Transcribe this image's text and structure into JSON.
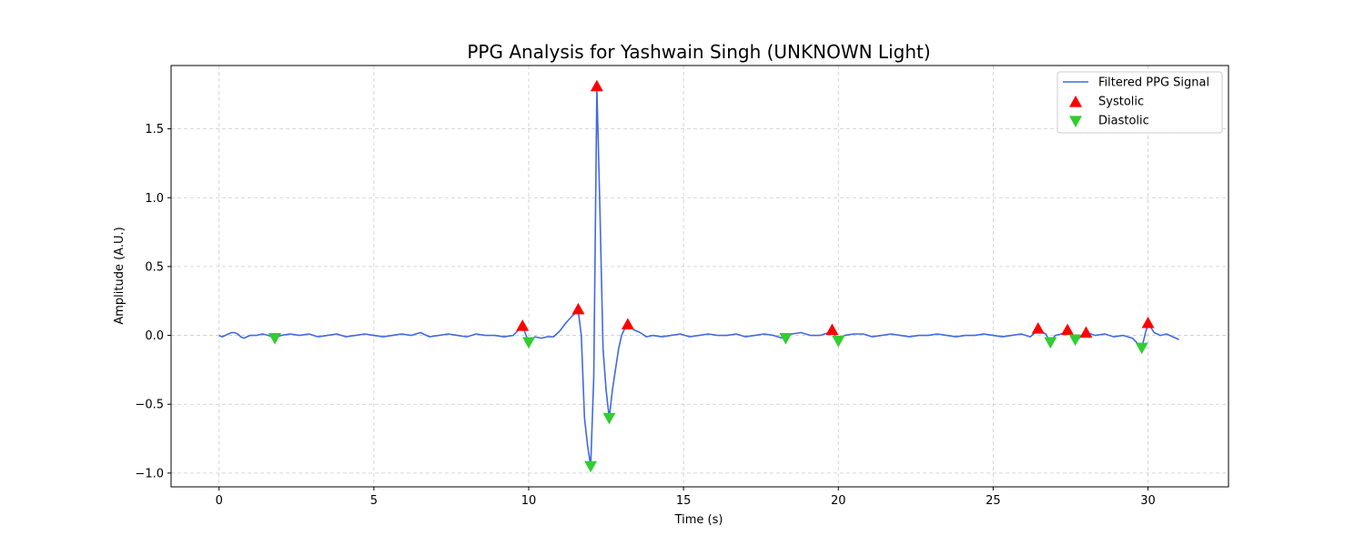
{
  "chart_data": {
    "type": "line",
    "title": "PPG Analysis for Yashwain Singh (UNKNOWN Light)",
    "xlabel": "Time (s)",
    "ylabel": "Amplitude (A.U.)",
    "xlim": [
      -1.55,
      32.6
    ],
    "ylim": [
      -1.1,
      1.96
    ],
    "xticks": [
      0,
      5,
      10,
      15,
      20,
      25,
      30
    ],
    "yticks": [
      -1.0,
      -0.5,
      0.0,
      0.5,
      1.0,
      1.5
    ],
    "xtick_labels": [
      "0",
      "5",
      "10",
      "15",
      "20",
      "25",
      "30"
    ],
    "ytick_labels": [
      "−1.0",
      "−0.5",
      "0.0",
      "0.5",
      "1.0",
      "1.5"
    ],
    "grid": true,
    "legend_position": "top-right",
    "series": [
      {
        "name": "Filtered PPG Signal",
        "kind": "line",
        "color": "#4169e1",
        "x": [
          0,
          0.1,
          0.2,
          0.3,
          0.4,
          0.5,
          0.6,
          0.7,
          0.8,
          0.9,
          1.0,
          1.2,
          1.4,
          1.6,
          1.8,
          2.0,
          2.3,
          2.6,
          2.9,
          3.2,
          3.5,
          3.8,
          4.1,
          4.4,
          4.7,
          5.0,
          5.3,
          5.6,
          5.9,
          6.2,
          6.5,
          6.8,
          7.1,
          7.4,
          7.7,
          8.0,
          8.3,
          8.6,
          8.9,
          9.2,
          9.5,
          9.8,
          10.0,
          10.2,
          10.4,
          10.6,
          10.8,
          11.0,
          11.2,
          11.4,
          11.6,
          11.7,
          11.8,
          11.9,
          12.0,
          12.1,
          12.2,
          12.3,
          12.4,
          12.5,
          12.6,
          12.7,
          12.8,
          12.9,
          13.0,
          13.1,
          13.2,
          13.4,
          13.6,
          13.8,
          14.0,
          14.3,
          14.6,
          14.9,
          15.2,
          15.5,
          15.8,
          16.1,
          16.4,
          16.7,
          17.0,
          17.3,
          17.6,
          17.9,
          18.2,
          18.5,
          18.8,
          19.1,
          19.4,
          19.7,
          19.8,
          20.0,
          20.2,
          20.5,
          20.8,
          21.1,
          21.4,
          21.7,
          22.0,
          22.3,
          22.6,
          22.9,
          23.2,
          23.5,
          23.8,
          24.1,
          24.4,
          24.7,
          25.0,
          25.3,
          25.6,
          25.9,
          26.2,
          26.45,
          26.7,
          26.85,
          27.0,
          27.2,
          27.4,
          27.55,
          27.7,
          27.85,
          28.0,
          28.3,
          28.6,
          28.9,
          29.2,
          29.5,
          29.8,
          29.9,
          30.0,
          30.2,
          30.4,
          30.6,
          30.8,
          31.0
        ],
        "y": [
          0.0,
          -0.01,
          0.0,
          0.01,
          0.02,
          0.02,
          0.01,
          -0.01,
          -0.02,
          -0.01,
          0.0,
          0.0,
          0.01,
          0.0,
          -0.02,
          0.0,
          0.01,
          0.0,
          0.01,
          -0.01,
          0.0,
          0.01,
          -0.01,
          0.0,
          0.01,
          0.0,
          -0.01,
          0.0,
          0.01,
          0.0,
          0.02,
          -0.01,
          0.0,
          0.01,
          0.0,
          -0.01,
          0.01,
          0.0,
          0.0,
          -0.01,
          0.0,
          0.07,
          -0.05,
          -0.01,
          -0.02,
          -0.01,
          -0.01,
          0.03,
          0.09,
          0.14,
          0.18,
          0.0,
          -0.6,
          -0.8,
          -0.95,
          -0.3,
          1.8,
          0.9,
          -0.1,
          -0.4,
          -0.6,
          -0.4,
          -0.25,
          -0.1,
          0.0,
          0.05,
          0.07,
          0.04,
          0.02,
          -0.01,
          0.0,
          -0.01,
          0.0,
          0.01,
          -0.01,
          0.0,
          0.01,
          0.0,
          0.0,
          0.01,
          -0.01,
          0.0,
          0.01,
          0.0,
          -0.02,
          0.01,
          0.02,
          0.0,
          0.0,
          0.02,
          0.03,
          -0.04,
          0.0,
          0.01,
          0.01,
          -0.01,
          0.0,
          0.01,
          0.0,
          -0.01,
          0.0,
          0.0,
          0.01,
          0.0,
          -0.01,
          0.0,
          0.0,
          0.01,
          0.0,
          -0.01,
          0.0,
          0.01,
          -0.01,
          0.04,
          0.01,
          -0.05,
          0.0,
          0.01,
          0.03,
          0.0,
          -0.04,
          0.0,
          0.02,
          0.0,
          0.01,
          -0.01,
          0.0,
          -0.02,
          -0.09,
          0.0,
          0.09,
          0.02,
          0.0,
          0.01,
          -0.01,
          -0.03
        ]
      },
      {
        "name": "Systolic",
        "kind": "marker-up",
        "color": "#ff0000",
        "x": [
          9.8,
          11.6,
          12.2,
          13.2,
          19.8,
          26.45,
          27.4,
          28.0,
          30.0
        ],
        "y": [
          0.07,
          0.19,
          1.81,
          0.08,
          0.04,
          0.05,
          0.04,
          0.02,
          0.09
        ]
      },
      {
        "name": "Diastolic",
        "kind": "marker-down",
        "color": "#32cd32",
        "x": [
          1.8,
          10.0,
          12.0,
          12.6,
          18.3,
          20.0,
          26.85,
          27.65,
          29.8
        ],
        "y": [
          -0.02,
          -0.05,
          -0.95,
          -0.6,
          -0.02,
          -0.04,
          -0.05,
          -0.03,
          -0.09
        ]
      }
    ]
  }
}
